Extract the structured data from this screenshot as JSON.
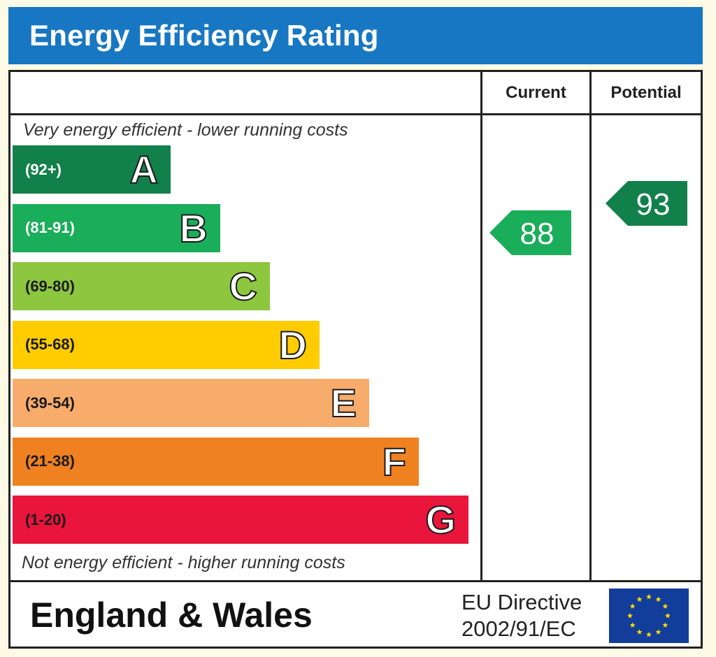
{
  "title": "Energy Efficiency Rating",
  "columns": {
    "current": "Current",
    "potential": "Potential"
  },
  "notes": {
    "top": "Very energy efficient - lower running costs",
    "bottom": "Not energy efficient - higher running costs"
  },
  "chart_data": {
    "type": "bar",
    "title": "Energy Efficiency Rating",
    "categories": [
      "A",
      "B",
      "C",
      "D",
      "E",
      "F",
      "G"
    ],
    "bands": [
      {
        "letter": "A",
        "range": "(92+)",
        "color": "#11804a",
        "text_color": "#ffffff"
      },
      {
        "letter": "B",
        "range": "(81-91)",
        "color": "#1aad5a",
        "text_color": "#ffffff"
      },
      {
        "letter": "C",
        "range": "(69-80)",
        "color": "#8dc63f",
        "text_color": "#1a1a1a"
      },
      {
        "letter": "D",
        "range": "(55-68)",
        "color": "#ffcc00",
        "text_color": "#1a1a1a"
      },
      {
        "letter": "E",
        "range": "(39-54)",
        "color": "#f7ac6b",
        "text_color": "#1a1a1a"
      },
      {
        "letter": "F",
        "range": "(21-38)",
        "color": "#f08121",
        "text_color": "#1a1a1a"
      },
      {
        "letter": "G",
        "range": "(1-20)",
        "color": "#e9153b",
        "text_color": "#1a1a1a"
      }
    ],
    "current": {
      "value": 88,
      "label": "88",
      "band": "B",
      "color": "#1aad5a"
    },
    "potential": {
      "value": 93,
      "label": "93",
      "band": "A",
      "color": "#11804a"
    }
  },
  "footer": {
    "region": "England & Wales",
    "directive_line1": "EU Directive",
    "directive_line2": "2002/91/EC",
    "flag_icon": "eu-flag-icon"
  }
}
